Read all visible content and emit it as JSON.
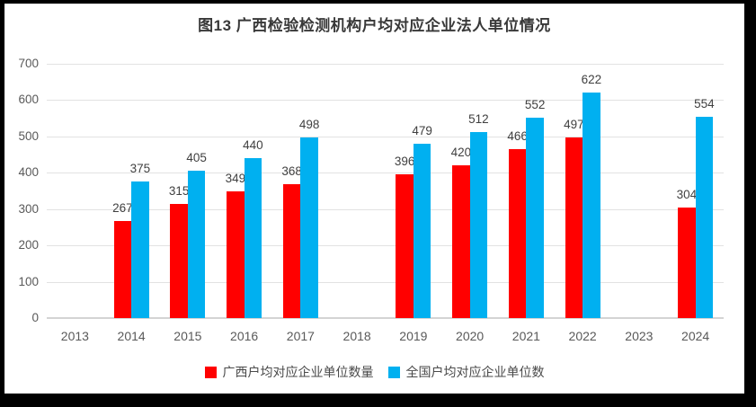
{
  "chart_data": {
    "type": "bar",
    "title": "图13 广西检验检测机构户均对应企业法人单位情况",
    "categories": [
      "2013",
      "2014",
      "2015",
      "2016",
      "2017",
      "2018",
      "2019",
      "2020",
      "2021",
      "2022",
      "2023",
      "2024"
    ],
    "series": [
      {
        "name": "广西户均对应企业单位数量",
        "color": "#FF0000",
        "values": [
          null,
          267,
          315,
          349,
          368,
          null,
          396,
          420,
          466,
          497,
          null,
          304
        ]
      },
      {
        "name": "全国户均对应企业单位数",
        "color": "#00B0F0",
        "values": [
          null,
          375,
          405,
          440,
          498,
          null,
          479,
          512,
          552,
          622,
          null,
          554
        ]
      }
    ],
    "xlabel": "",
    "ylabel": "",
    "ylim": [
      0,
      700
    ],
    "yticks": [
      0,
      100,
      200,
      300,
      400,
      500,
      600,
      700
    ],
    "grid": true,
    "data_labels": true,
    "legend_position": "bottom"
  },
  "style": {
    "series_red": "#FF0000",
    "series_blue": "#00B0F0",
    "grid_color": "#E2E2E2",
    "axis_color": "#D4D4D4",
    "tick_label_color": "#595959",
    "data_label_color": "#3F3F3F",
    "title_color": "#383838",
    "frame_color": "#000000",
    "background": "#FFFFFF"
  }
}
